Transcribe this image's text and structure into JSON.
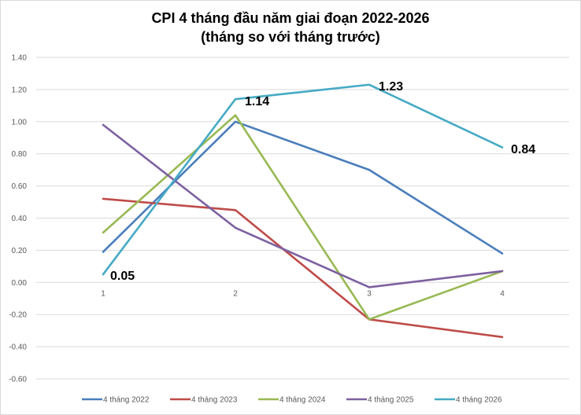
{
  "chart_data": {
    "type": "line",
    "title_lines": [
      "CPI 4 tháng đầu năm giai đoạn 2022-2026",
      "(tháng so với tháng trước)"
    ],
    "x": [
      "1",
      "2",
      "3",
      "4"
    ],
    "ylim": [
      -0.6,
      1.4
    ],
    "y_ticks": [
      "1.40",
      "1.20",
      "1.00",
      "0.80",
      "0.60",
      "0.40",
      "0.20",
      "0.00",
      "-0.20",
      "-0.40",
      "-0.60"
    ],
    "grid": true,
    "legend_position": "bottom",
    "series": [
      {
        "name": "4 tháng 2022",
        "color": "#4a7ebb",
        "values": [
          0.19,
          1.0,
          0.7,
          0.18
        ]
      },
      {
        "name": "4 tháng 2023",
        "color": "#be4b48",
        "values": [
          0.52,
          0.45,
          -0.23,
          -0.34
        ]
      },
      {
        "name": "4 tháng 2024",
        "color": "#98b954",
        "values": [
          0.31,
          1.04,
          -0.23,
          0.07
        ]
      },
      {
        "name": "4 tháng 2025",
        "color": "#7d60a0",
        "values": [
          0.98,
          0.34,
          -0.03,
          0.07
        ]
      },
      {
        "name": "4 tháng 2026",
        "color": "#46aac5",
        "values": [
          0.05,
          1.14,
          1.23,
          0.84
        ],
        "data_labels": [
          "0.05",
          "1.14",
          "1.23",
          "0.84"
        ]
      }
    ]
  }
}
